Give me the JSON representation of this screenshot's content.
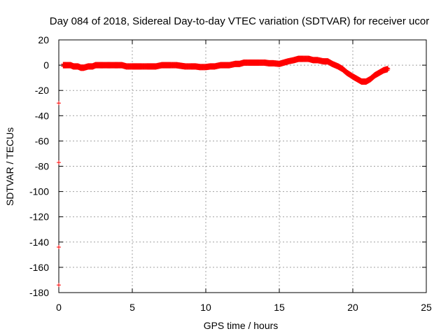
{
  "chart_data": {
    "type": "scatter",
    "title": "Day 084 of 2018, Sidereal Day-to-day VTEC variation (SDTVAR) for receiver ucor",
    "xlabel": "GPS time / hours",
    "ylabel": "SDTVAR / TECUs",
    "xlim": [
      0,
      25
    ],
    "ylim": [
      -180,
      20
    ],
    "x_ticks": [
      0,
      5,
      10,
      15,
      20,
      25
    ],
    "y_ticks": [
      20,
      0,
      -20,
      -40,
      -60,
      -80,
      -100,
      -120,
      -140,
      -160,
      -180
    ],
    "grid": true,
    "marker": "plus",
    "color": "#ff0000",
    "series": [
      {
        "x": [
          0.3,
          0.5,
          0.8,
          1.0,
          1.3,
          1.5,
          1.7,
          2.0,
          2.3,
          2.5,
          2.8,
          3.0,
          3.3,
          3.5,
          3.8,
          4.0,
          4.3,
          4.6,
          5.0,
          5.3,
          5.6,
          6.0,
          6.3,
          6.6,
          7.0,
          7.3,
          7.6,
          8.0,
          8.3,
          8.6,
          9.0,
          9.3,
          9.6,
          10.0,
          10.3,
          10.6,
          11.0,
          11.3,
          11.6,
          12.0,
          12.3,
          12.6,
          13.0,
          13.3,
          13.6,
          14.0,
          14.3,
          14.6,
          15.0,
          15.3,
          15.6,
          16.0,
          16.3,
          16.6,
          17.0,
          17.3,
          17.6,
          18.0,
          18.3,
          18.6,
          19.0,
          19.3,
          19.6,
          20.0,
          20.3,
          20.6,
          20.9,
          21.2,
          21.5,
          21.8,
          22.1,
          22.4
        ],
        "y": [
          0,
          0,
          0,
          -1,
          -1,
          -2,
          -2,
          -1,
          -1,
          0,
          0,
          0,
          0,
          0,
          0,
          0,
          0,
          -1,
          -1,
          -1,
          -1,
          -1,
          -1,
          -1,
          0,
          0,
          0,
          0,
          -0.5,
          -1,
          -1,
          -1,
          -1.5,
          -1.5,
          -1,
          -1,
          0,
          0,
          0,
          1,
          1,
          2,
          2,
          2,
          2,
          2,
          1.5,
          1.5,
          1,
          2,
          3,
          4,
          5,
          5,
          5,
          4,
          4,
          3,
          3,
          1,
          -1,
          -3,
          -6,
          -9,
          -11,
          -13,
          -13,
          -11,
          -8,
          -6,
          -4,
          -3
        ]
      },
      {
        "x": [
          0.0,
          0.0,
          0.0,
          0.0
        ],
        "y": [
          -30,
          -77,
          -144,
          -174
        ]
      }
    ]
  }
}
